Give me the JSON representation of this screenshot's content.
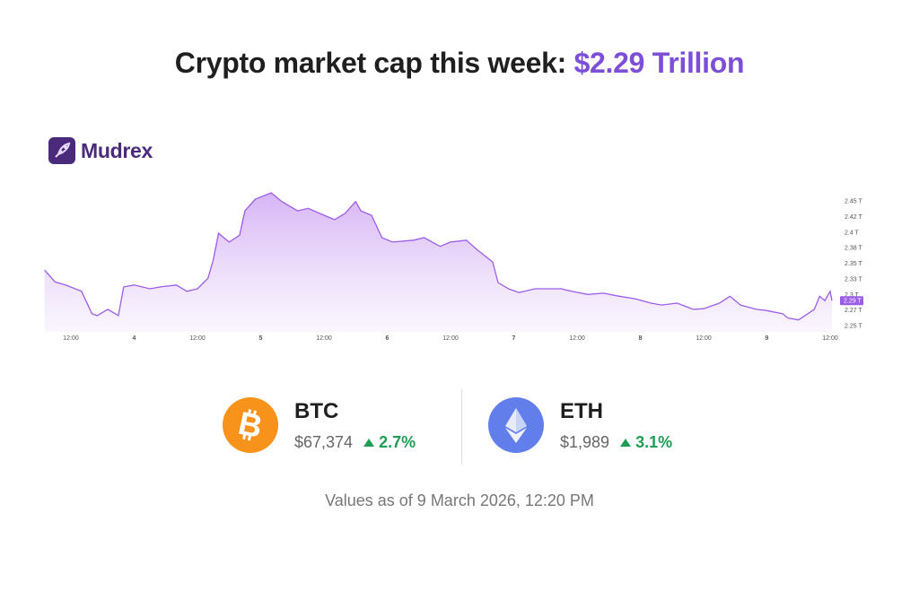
{
  "header": {
    "title_prefix": "Crypto market cap this week: ",
    "title_value": "$2.29 Trillion",
    "accent_color": "#7b4fd6"
  },
  "logo": {
    "text": "Mudrex",
    "icon": "mudrex-logo-icon",
    "color": "#4a2a7a"
  },
  "chart_data": {
    "type": "area",
    "title": "",
    "xlabel": "",
    "ylabel": "",
    "line_color": "#9b5de5",
    "fill_color": "#d9b8f7",
    "y_ticks": [
      "2.45 T",
      "2.42 T",
      "2.4 T",
      "2.38 T",
      "2.35 T",
      "2.33 T",
      "2.3 T",
      "2.27 T",
      "2.25 T"
    ],
    "y_tick_values": [
      2.45,
      2.425,
      2.4,
      2.375,
      2.35,
      2.325,
      2.3,
      2.275,
      2.25
    ],
    "ylim": [
      2.25,
      2.45
    ],
    "x_ticks": [
      {
        "label": "12:00",
        "t": "2026-03-03T12:00"
      },
      {
        "label": "4",
        "t": "2026-03-04T00:00"
      },
      {
        "label": "12:00",
        "t": "2026-03-04T12:00"
      },
      {
        "label": "5",
        "t": "2026-03-05T00:00"
      },
      {
        "label": "12:00",
        "t": "2026-03-05T12:00"
      },
      {
        "label": "6",
        "t": "2026-03-06T00:00"
      },
      {
        "label": "12:00",
        "t": "2026-03-06T12:00"
      },
      {
        "label": "7",
        "t": "2026-03-07T00:00"
      },
      {
        "label": "12:00",
        "t": "2026-03-07T12:00"
      },
      {
        "label": "8",
        "t": "2026-03-08T00:00"
      },
      {
        "label": "12:00",
        "t": "2026-03-08T12:00"
      },
      {
        "label": "9",
        "t": "2026-03-09T00:00"
      },
      {
        "label": "12:00",
        "t": "2026-03-09T12:00"
      }
    ],
    "current_label": "2.29 T",
    "unit": "Trillion USD",
    "points": [
      [
        "2026-03-03T07:00",
        2.339
      ],
      [
        "2026-03-03T09:00",
        2.32
      ],
      [
        "2026-03-03T11:00",
        2.315
      ],
      [
        "2026-03-03T14:00",
        2.305
      ],
      [
        "2026-03-03T16:00",
        2.269
      ],
      [
        "2026-03-03T17:00",
        2.266
      ],
      [
        "2026-03-03T19:00",
        2.276
      ],
      [
        "2026-03-03T21:00",
        2.266
      ],
      [
        "2026-03-03T22:00",
        2.312
      ],
      [
        "2026-03-04T00:00",
        2.315
      ],
      [
        "2026-03-04T03:00",
        2.309
      ],
      [
        "2026-03-04T05:00",
        2.312
      ],
      [
        "2026-03-04T08:00",
        2.315
      ],
      [
        "2026-03-04T10:00",
        2.305
      ],
      [
        "2026-03-04T12:00",
        2.309
      ],
      [
        "2026-03-04T14:00",
        2.326
      ],
      [
        "2026-03-04T15:00",
        2.355
      ],
      [
        "2026-03-04T16:00",
        2.398
      ],
      [
        "2026-03-04T18:00",
        2.384
      ],
      [
        "2026-03-04T20:00",
        2.395
      ],
      [
        "2026-03-04T21:00",
        2.434
      ],
      [
        "2026-03-04T23:00",
        2.453
      ],
      [
        "2026-03-05T02:00",
        2.463
      ],
      [
        "2026-03-05T04:00",
        2.449
      ],
      [
        "2026-03-05T07:00",
        2.434
      ],
      [
        "2026-03-05T09:00",
        2.438
      ],
      [
        "2026-03-05T12:00",
        2.427
      ],
      [
        "2026-03-05T14:00",
        2.42
      ],
      [
        "2026-03-05T16:00",
        2.43
      ],
      [
        "2026-03-05T18:00",
        2.449
      ],
      [
        "2026-03-05T19:00",
        2.434
      ],
      [
        "2026-03-05T21:00",
        2.427
      ],
      [
        "2026-03-05T23:00",
        2.391
      ],
      [
        "2026-03-06T01:00",
        2.384
      ],
      [
        "2026-03-06T05:00",
        2.387
      ],
      [
        "2026-03-06T07:00",
        2.391
      ],
      [
        "2026-03-06T10:00",
        2.377
      ],
      [
        "2026-03-06T12:00",
        2.384
      ],
      [
        "2026-03-06T15:00",
        2.387
      ],
      [
        "2026-03-06T17:00",
        2.372
      ],
      [
        "2026-03-06T20:00",
        2.352
      ],
      [
        "2026-03-06T21:00",
        2.319
      ],
      [
        "2026-03-06T23:00",
        2.309
      ],
      [
        "2026-03-07T01:00",
        2.303
      ],
      [
        "2026-03-07T04:00",
        2.309
      ],
      [
        "2026-03-07T06:00",
        2.309
      ],
      [
        "2026-03-07T09:00",
        2.309
      ],
      [
        "2026-03-07T11:00",
        2.305
      ],
      [
        "2026-03-07T14:00",
        2.3
      ],
      [
        "2026-03-07T17:00",
        2.302
      ],
      [
        "2026-03-07T20:00",
        2.297
      ],
      [
        "2026-03-07T23:00",
        2.293
      ],
      [
        "2026-03-08T02:00",
        2.286
      ],
      [
        "2026-03-08T04:00",
        2.283
      ],
      [
        "2026-03-08T07:00",
        2.286
      ],
      [
        "2026-03-08T10:00",
        2.276
      ],
      [
        "2026-03-08T12:00",
        2.277
      ],
      [
        "2026-03-08T15:00",
        2.286
      ],
      [
        "2026-03-08T17:00",
        2.297
      ],
      [
        "2026-03-08T19:00",
        2.283
      ],
      [
        "2026-03-08T22:00",
        2.276
      ],
      [
        "2026-03-09T00:00",
        2.274
      ],
      [
        "2026-03-09T03:00",
        2.269
      ],
      [
        "2026-03-09T04:00",
        2.262
      ],
      [
        "2026-03-09T06:00",
        2.259
      ],
      [
        "2026-03-09T09:00",
        2.276
      ],
      [
        "2026-03-09T10:00",
        2.297
      ],
      [
        "2026-03-09T11:00",
        2.29
      ],
      [
        "2026-03-09T12:00",
        2.305
      ],
      [
        "2026-03-09T12:20",
        2.29
      ]
    ]
  },
  "coins": [
    {
      "symbol": "BTC",
      "price": "$67,374",
      "change": "2.7%",
      "direction": "up",
      "icon": "bitcoin-icon",
      "color": "#f7931a"
    },
    {
      "symbol": "ETH",
      "price": "$1,989",
      "change": "3.1%",
      "direction": "up",
      "icon": "ethereum-icon",
      "color": "#627eea"
    }
  ],
  "footer": {
    "as_of": "Values as of 9 March 2026, 12:20 PM"
  },
  "change_color": "#1f9d55"
}
